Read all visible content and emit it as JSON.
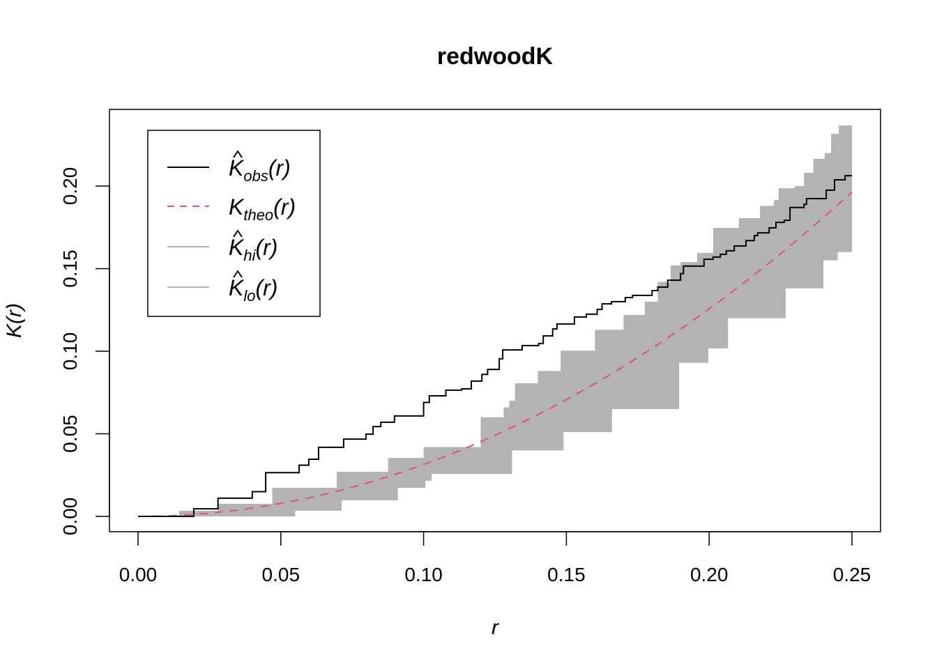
{
  "chart_data": {
    "type": "line",
    "title": "redwoodK",
    "xlabel": "r",
    "ylabel": "K(r)",
    "xlim": [
      0,
      0.25
    ],
    "ylim": [
      0,
      0.22
    ],
    "xticks": [
      "0.00",
      "0.05",
      "0.10",
      "0.15",
      "0.20",
      "0.25"
    ],
    "yticks": [
      "0.00",
      "0.05",
      "0.10",
      "0.15",
      "0.20"
    ],
    "grid": false,
    "legend_position": "top-left",
    "legend": [
      {
        "symbol": "K",
        "hat": true,
        "sub": "obs",
        "suffix": "(r)",
        "color": "#000000",
        "dash": "solid"
      },
      {
        "symbol": "K",
        "hat": false,
        "sub": "theo",
        "suffix": "(r)",
        "color": "#DF536B",
        "dash": "dashed"
      },
      {
        "symbol": "K",
        "hat": true,
        "sub": "hi",
        "suffix": "(r)",
        "color": "#B3B3B3",
        "dash": "solid"
      },
      {
        "symbol": "K",
        "hat": true,
        "sub": "lo",
        "suffix": "(r)",
        "color": "#B3B3B3",
        "dash": "solid"
      }
    ],
    "series": [
      {
        "name": "obs",
        "kind": "step",
        "color": "#000000",
        "points": [
          [
            0,
            0
          ],
          [
            0.0195,
            0.0046
          ],
          [
            0.028,
            0.011
          ],
          [
            0.04,
            0.015
          ],
          [
            0.0447,
            0.0265
          ],
          [
            0.0564,
            0.031
          ],
          [
            0.0598,
            0.0346
          ],
          [
            0.0632,
            0.0418
          ],
          [
            0.072,
            0.0468
          ],
          [
            0.0798,
            0.0498
          ],
          [
            0.0823,
            0.0544
          ],
          [
            0.085,
            0.057
          ],
          [
            0.0898,
            0.0608
          ],
          [
            0.1,
            0.069
          ],
          [
            0.102,
            0.073
          ],
          [
            0.1078,
            0.0764
          ],
          [
            0.1133,
            0.0772
          ],
          [
            0.1167,
            0.0819
          ],
          [
            0.1204,
            0.086
          ],
          [
            0.1224,
            0.089
          ],
          [
            0.1265,
            0.0954
          ],
          [
            0.1277,
            0.1008
          ],
          [
            0.1345,
            0.1034
          ],
          [
            0.1403,
            0.1047
          ],
          [
            0.1419,
            0.1093
          ],
          [
            0.1452,
            0.1135
          ],
          [
            0.1467,
            0.1165
          ],
          [
            0.1528,
            0.1207
          ],
          [
            0.157,
            0.1224
          ],
          [
            0.1608,
            0.1253
          ],
          [
            0.1625,
            0.1287
          ],
          [
            0.1658,
            0.13
          ],
          [
            0.1706,
            0.1325
          ],
          [
            0.1732,
            0.1338
          ],
          [
            0.18,
            0.1367
          ],
          [
            0.182,
            0.1388
          ],
          [
            0.1855,
            0.143
          ],
          [
            0.19,
            0.147
          ],
          [
            0.191,
            0.1515
          ],
          [
            0.1982,
            0.1557
          ],
          [
            0.2014,
            0.157
          ],
          [
            0.2039,
            0.1587
          ],
          [
            0.206,
            0.1608
          ],
          [
            0.2088,
            0.1637
          ],
          [
            0.2129,
            0.167
          ],
          [
            0.2158,
            0.17
          ],
          [
            0.217,
            0.1717
          ],
          [
            0.221,
            0.1747
          ],
          [
            0.2234,
            0.178
          ],
          [
            0.2263,
            0.1793
          ],
          [
            0.2283,
            0.187
          ],
          [
            0.2332,
            0.189
          ],
          [
            0.2341,
            0.1924
          ],
          [
            0.241,
            0.1975
          ],
          [
            0.2439,
            0.2038
          ],
          [
            0.2476,
            0.2063
          ],
          [
            0.25,
            0.2063
          ]
        ]
      },
      {
        "name": "theo",
        "kind": "function",
        "formula": "pi*r^2",
        "color": "#DF536B"
      },
      {
        "name": "hi",
        "kind": "envelope-upper",
        "color": "#B3B3B3",
        "points": [
          [
            0,
            0
          ],
          [
            0.0144,
            0.0034
          ],
          [
            0.028,
            0.0076
          ],
          [
            0.047,
            0.0173
          ],
          [
            0.0696,
            0.027
          ],
          [
            0.0876,
            0.0354
          ],
          [
            0.1,
            0.042
          ],
          [
            0.12,
            0.06
          ],
          [
            0.128,
            0.066
          ],
          [
            0.13,
            0.07
          ],
          [
            0.132,
            0.0806
          ],
          [
            0.14,
            0.088
          ],
          [
            0.148,
            0.1004
          ],
          [
            0.16,
            0.113
          ],
          [
            0.17,
            0.122
          ],
          [
            0.1775,
            0.13
          ],
          [
            0.182,
            0.142
          ],
          [
            0.1865,
            0.152
          ],
          [
            0.19,
            0.154
          ],
          [
            0.1958,
            0.1595
          ],
          [
            0.2014,
            0.1747
          ],
          [
            0.2104,
            0.1806
          ],
          [
            0.2178,
            0.188
          ],
          [
            0.2227,
            0.1916
          ],
          [
            0.2243,
            0.1987
          ],
          [
            0.23,
            0.2
          ],
          [
            0.2332,
            0.208
          ],
          [
            0.2365,
            0.2165
          ],
          [
            0.2405,
            0.22
          ],
          [
            0.2427,
            0.2316
          ],
          [
            0.2454,
            0.2367
          ],
          [
            0.25,
            0.237
          ]
        ]
      },
      {
        "name": "lo",
        "kind": "envelope-lower",
        "color": "#B3B3B3",
        "points": [
          [
            0,
            0
          ],
          [
            0.042,
            0
          ],
          [
            0.055,
            0.0034
          ],
          [
            0.0713,
            0.0097
          ],
          [
            0.091,
            0.0173
          ],
          [
            0.1006,
            0.0215
          ],
          [
            0.1028,
            0.0257
          ],
          [
            0.131,
            0.04
          ],
          [
            0.149,
            0.051
          ],
          [
            0.166,
            0.065
          ],
          [
            0.1895,
            0.093
          ],
          [
            0.1997,
            0.1017
          ],
          [
            0.2066,
            0.12
          ],
          [
            0.2268,
            0.138
          ],
          [
            0.24,
            0.155
          ],
          [
            0.245,
            0.16
          ],
          [
            0.25,
            0.168
          ]
        ]
      }
    ]
  }
}
